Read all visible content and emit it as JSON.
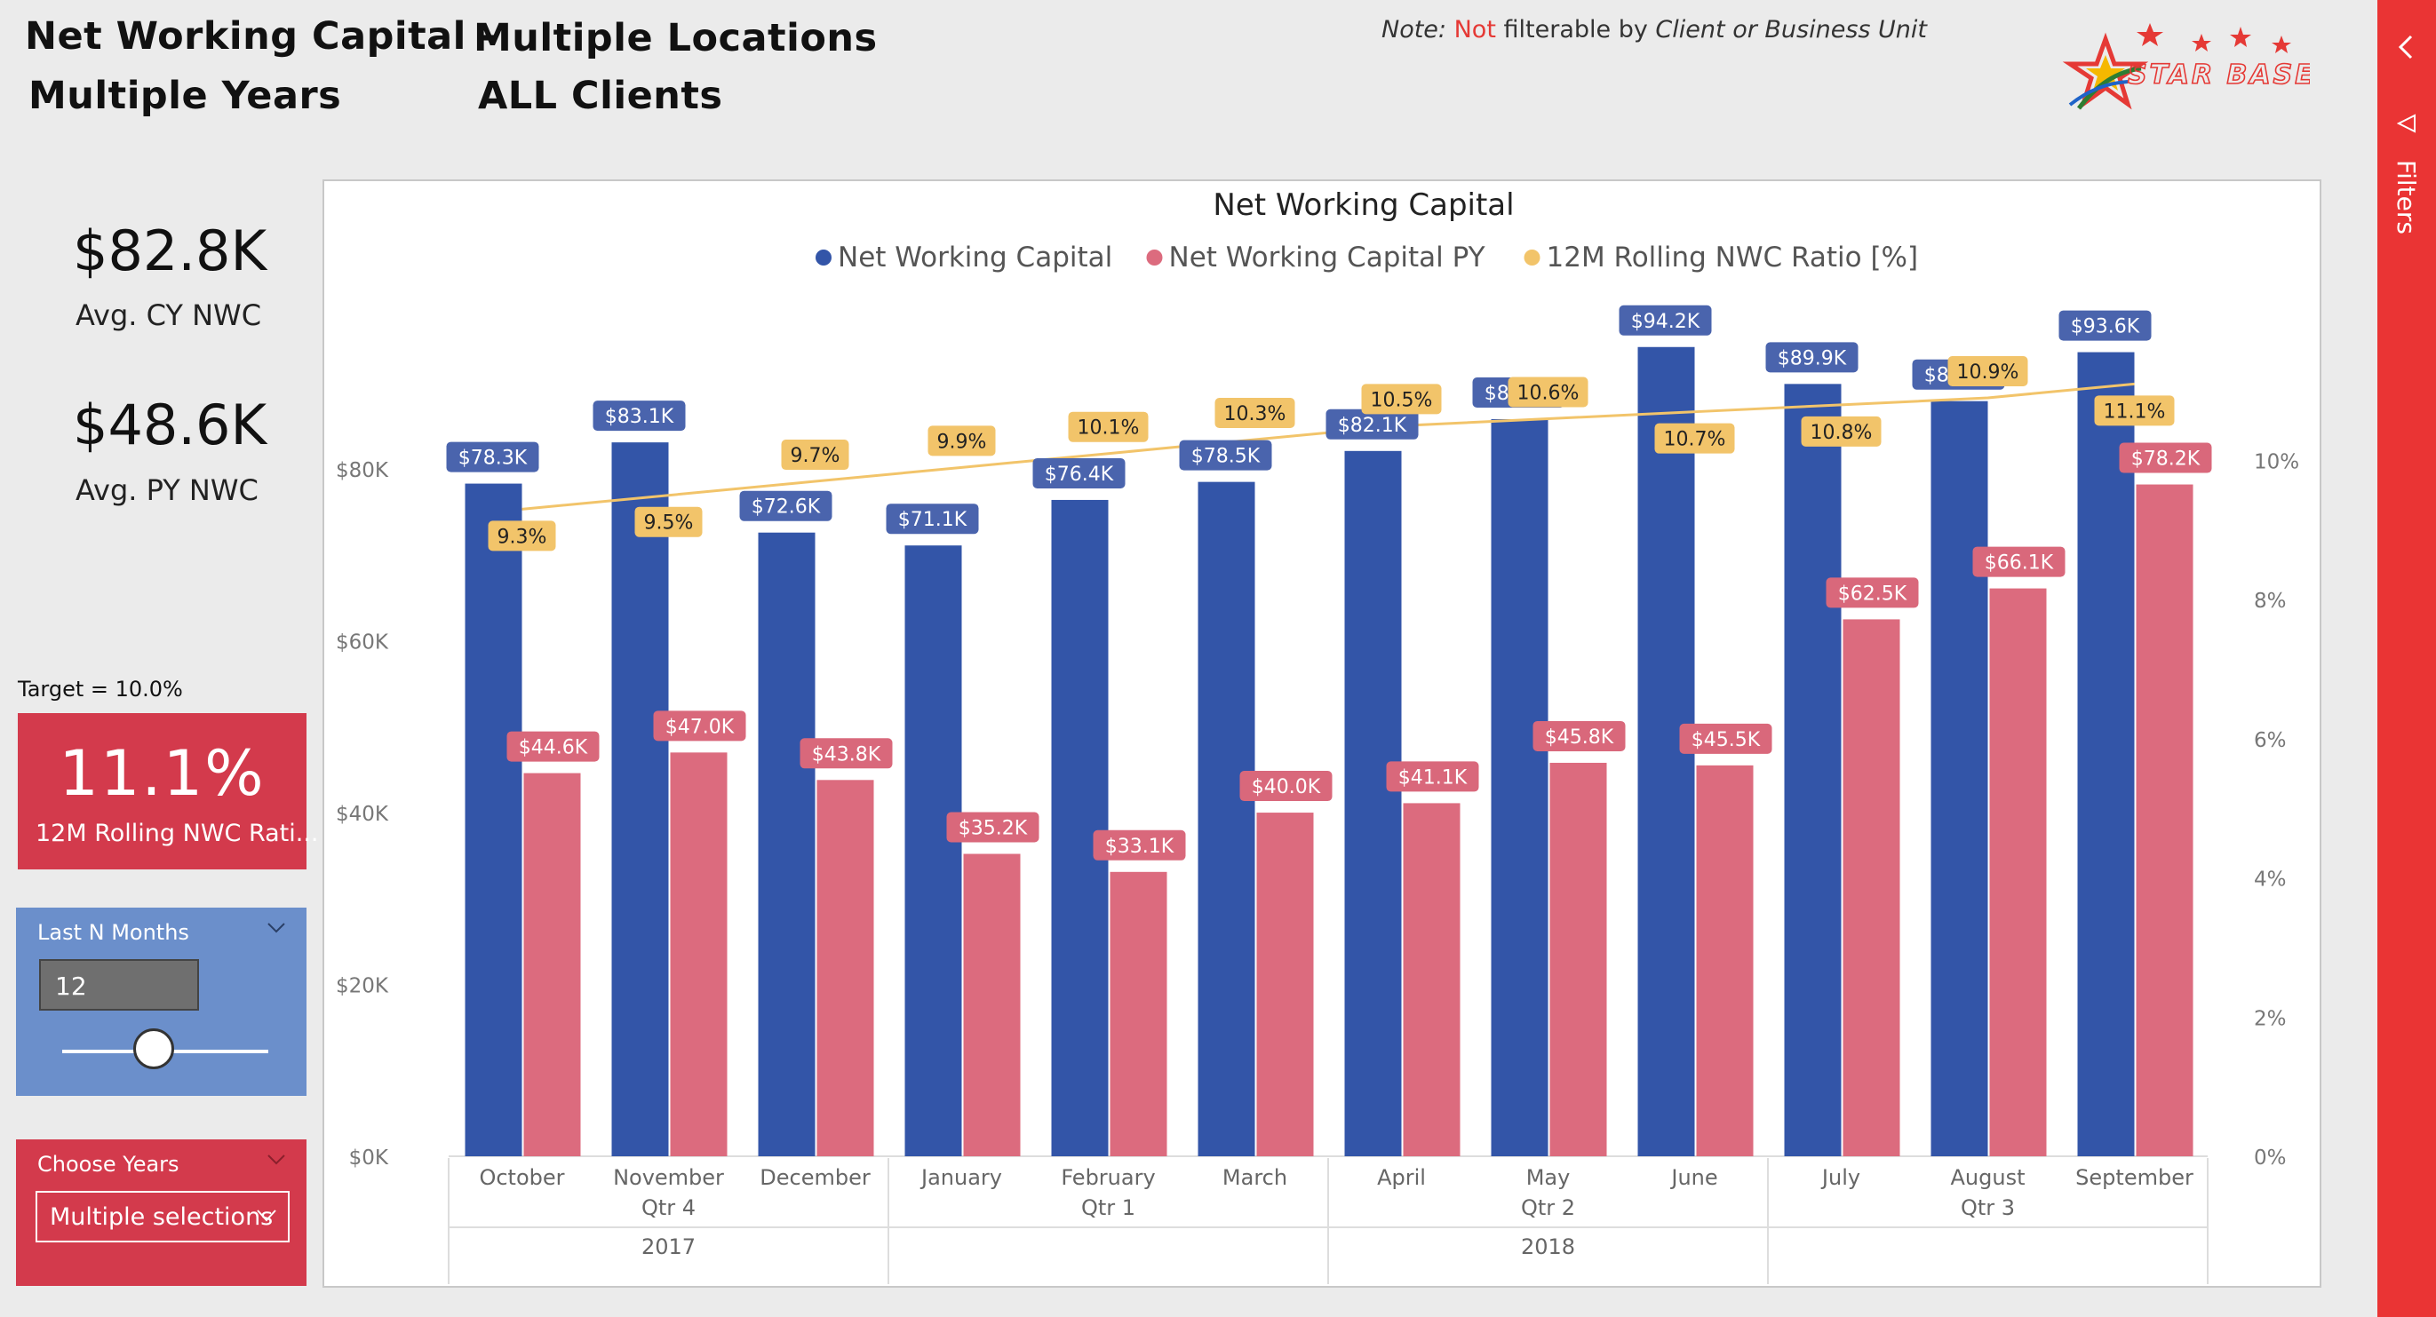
{
  "header": {
    "title_line1": "Net Working Capital -",
    "title_line2": "Multiple Years",
    "title_line3": "Multiple Locations",
    "title_line4": "ALL Clients",
    "note_prefix": "Note:",
    "note_not": "Not",
    "note_mid": "filterable by",
    "note_client": "Client",
    "note_or": "or",
    "note_bu": "Business Unit",
    "logo_text": "STAR BASE"
  },
  "kpis": {
    "avg_cy_value": "$82.8K",
    "avg_cy_label": "Avg. CY NWC",
    "avg_py_value": "$48.6K",
    "avg_py_label": "Avg. PY NWC",
    "target_text": "Target = 10.0%",
    "ratio_value": "11.1%",
    "ratio_label": "12M Rolling NWC Rati..."
  },
  "slicers": {
    "last_n_title": "Last N Months",
    "last_n_value": "12",
    "years_title": "Choose Years",
    "years_value": "Multiple selections"
  },
  "filters": {
    "label": "Filters"
  },
  "colors": {
    "cy": "#3355a8",
    "py": "#dc6b7e",
    "ratio": "#f2c46a",
    "accent_red": "#d33a4c",
    "slicer_blue": "#6b8fcb",
    "filters_red": "#ea3434"
  },
  "chart_data": {
    "type": "bar",
    "title": "Net Working Capital",
    "categories": [
      "October",
      "November",
      "December",
      "January",
      "February",
      "March",
      "April",
      "May",
      "June",
      "July",
      "August",
      "September"
    ],
    "quarter_labels": [
      "Qtr 4",
      "Qtr 1",
      "Qtr 2",
      "Qtr 3"
    ],
    "quarter_spans": [
      [
        0,
        2
      ],
      [
        3,
        5
      ],
      [
        6,
        8
      ],
      [
        9,
        11
      ]
    ],
    "year_labels": [
      "2017",
      "2018"
    ],
    "year_spans": [
      [
        0,
        2
      ],
      [
        3,
        11
      ]
    ],
    "series": [
      {
        "name": "Net Working Capital",
        "kind": "bar",
        "axis": "left",
        "values": [
          78.3,
          83.1,
          72.6,
          71.1,
          76.4,
          78.5,
          82.1,
          85.8,
          94.2,
          89.9,
          87.9,
          93.6
        ],
        "labels": [
          "$78.3K",
          "$83.1K",
          "$72.6K",
          "$71.1K",
          "$76.4K",
          "$78.5K",
          "$82.1K",
          "$85.8K",
          "$94.2K",
          "$89.9K",
          "$87.9K",
          "$93.6K"
        ]
      },
      {
        "name": "Net Working Capital PY",
        "kind": "bar",
        "axis": "left",
        "values": [
          44.6,
          47.0,
          43.8,
          35.2,
          33.1,
          40.0,
          41.1,
          45.8,
          45.5,
          62.5,
          66.1,
          78.2
        ],
        "labels": [
          "$44.6K",
          "$47.0K",
          "$43.8K",
          "$35.2K",
          "$33.1K",
          "$40.0K",
          "$41.1K",
          "$45.8K",
          "$45.5K",
          "$62.5K",
          "$66.1K",
          "$78.2K"
        ]
      },
      {
        "name": "12M Rolling NWC Ratio [%]",
        "kind": "line",
        "axis": "right",
        "values": [
          9.3,
          9.5,
          9.7,
          9.9,
          10.1,
          10.3,
          10.5,
          10.6,
          10.7,
          10.8,
          10.9,
          11.1
        ],
        "labels": [
          "9.3%",
          "9.5%",
          "9.7%",
          "9.9%",
          "10.1%",
          "10.3%",
          "10.5%",
          "10.6%",
          "10.7%",
          "10.8%",
          "10.9%",
          "11.1%"
        ]
      }
    ],
    "y_left": {
      "ticks": [
        "$0K",
        "$20K",
        "$40K",
        "$60K",
        "$80K"
      ],
      "tick_values": [
        0,
        20,
        40,
        60,
        80
      ],
      "range": [
        0,
        98
      ]
    },
    "y_right": {
      "ticks": [
        "0%",
        "2%",
        "4%",
        "6%",
        "8%",
        "10%"
      ],
      "tick_values": [
        0,
        2,
        4,
        6,
        8,
        10
      ],
      "range": [
        0,
        12.1
      ]
    },
    "legend_position": "top-center",
    "grid": false
  }
}
